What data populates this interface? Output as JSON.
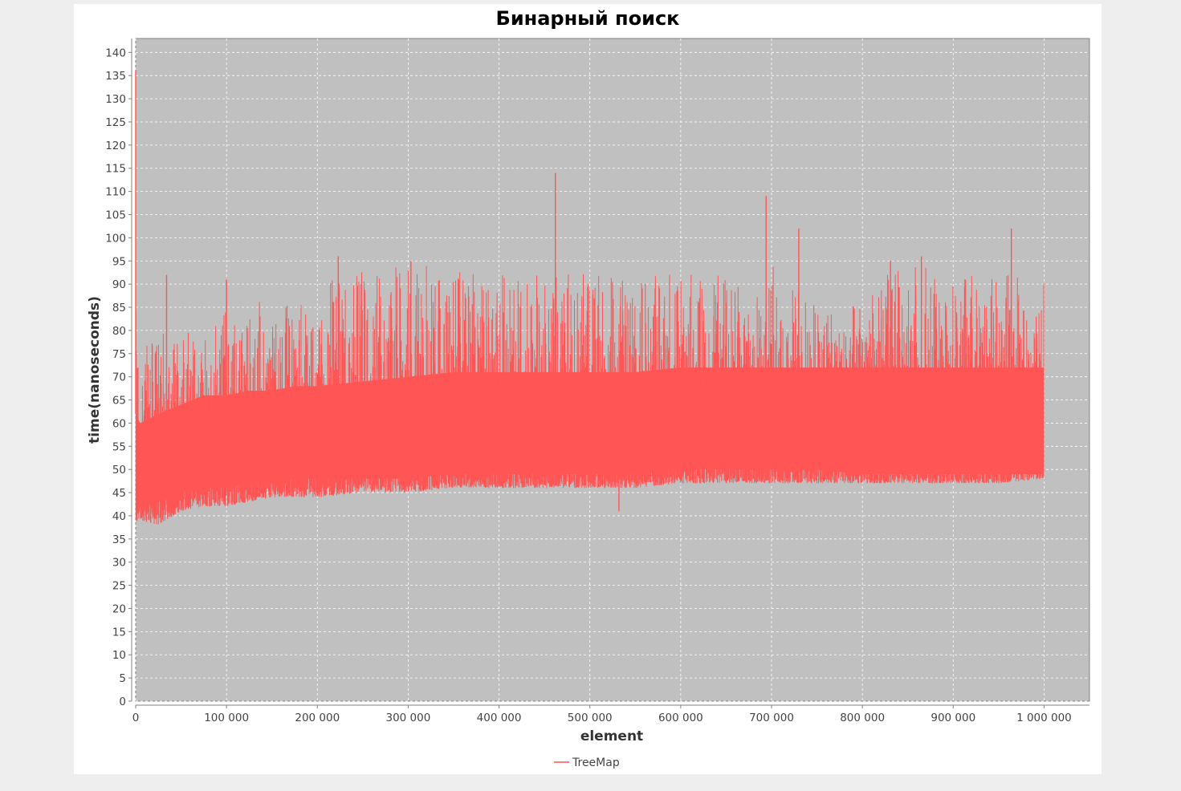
{
  "chart_data": {
    "type": "line",
    "title": "Бинарный поиск",
    "xlabel": "element",
    "ylabel": "time(nanoseconds)",
    "xlim": [
      0,
      1050000
    ],
    "ylim": [
      0,
      143
    ],
    "x_ticks": [
      0,
      100000,
      200000,
      300000,
      400000,
      500000,
      600000,
      700000,
      800000,
      900000,
      1000000
    ],
    "x_tick_labels": [
      "0",
      "100 000",
      "200 000",
      "300 000",
      "400 000",
      "500 000",
      "600 000",
      "700 000",
      "800 000",
      "900 000",
      "1 000 000"
    ],
    "y_ticks": [
      0,
      5,
      10,
      15,
      20,
      25,
      30,
      35,
      40,
      45,
      50,
      55,
      60,
      65,
      70,
      75,
      80,
      85,
      90,
      95,
      100,
      105,
      110,
      115,
      120,
      125,
      130,
      135,
      140
    ],
    "y_tick_labels": [
      "0",
      "5",
      "10",
      "15",
      "20",
      "25",
      "30",
      "35",
      "40",
      "45",
      "50",
      "55",
      "60",
      "65",
      "70",
      "75",
      "80",
      "85",
      "90",
      "95",
      "100",
      "105",
      "110",
      "115",
      "120",
      "125",
      "130",
      "135",
      "140"
    ],
    "grid": true,
    "legend_position": "bottom-center",
    "background_color": "#c0c0c0",
    "grid_color": "#ffffff",
    "series": [
      {
        "name": "TreeMap",
        "color": "#ff5555",
        "x": [
          0,
          5000,
          25000,
          50000,
          75000,
          100000,
          125000,
          150000,
          175000,
          200000,
          250000,
          300000,
          350000,
          400000,
          450000,
          500000,
          550000,
          600000,
          650000,
          700000,
          750000,
          800000,
          850000,
          900000,
          950000,
          1000000
        ],
        "y_min": [
          38,
          39,
          38,
          41,
          42,
          42,
          43,
          44,
          44,
          44,
          45,
          45,
          46,
          46,
          46,
          46,
          46,
          47,
          47,
          47,
          47,
          47,
          47,
          47,
          47,
          48
        ],
        "y_low": [
          41,
          42,
          43,
          45,
          46,
          46,
          47,
          47,
          48,
          48,
          48,
          48,
          49,
          49,
          49,
          49,
          49,
          50,
          50,
          50,
          50,
          49,
          49,
          49,
          49,
          49
        ],
        "y_high": [
          62,
          60,
          62,
          64,
          66,
          66,
          67,
          67,
          68,
          68,
          69,
          70,
          71,
          71,
          71,
          71,
          71,
          72,
          72,
          72,
          72,
          72,
          72,
          72,
          72,
          72
        ],
        "y_max": [
          85,
          75,
          80,
          79,
          81,
          86,
          86,
          87,
          85,
          90,
          93,
          95,
          93,
          92,
          94,
          92,
          91,
          93,
          92,
          95,
          86,
          87,
          96,
          91,
          93,
          93
        ],
        "spikes": [
          {
            "x": 0,
            "y": 136
          },
          {
            "x": 34000,
            "y": 92
          },
          {
            "x": 100000,
            "y": 91
          },
          {
            "x": 223000,
            "y": 96
          },
          {
            "x": 303000,
            "y": 95
          },
          {
            "x": 462000,
            "y": 114
          },
          {
            "x": 532000,
            "y": 41
          },
          {
            "x": 694000,
            "y": 109
          },
          {
            "x": 730000,
            "y": 102
          },
          {
            "x": 831000,
            "y": 95
          },
          {
            "x": 865000,
            "y": 96
          },
          {
            "x": 964000,
            "y": 102
          }
        ]
      }
    ]
  }
}
